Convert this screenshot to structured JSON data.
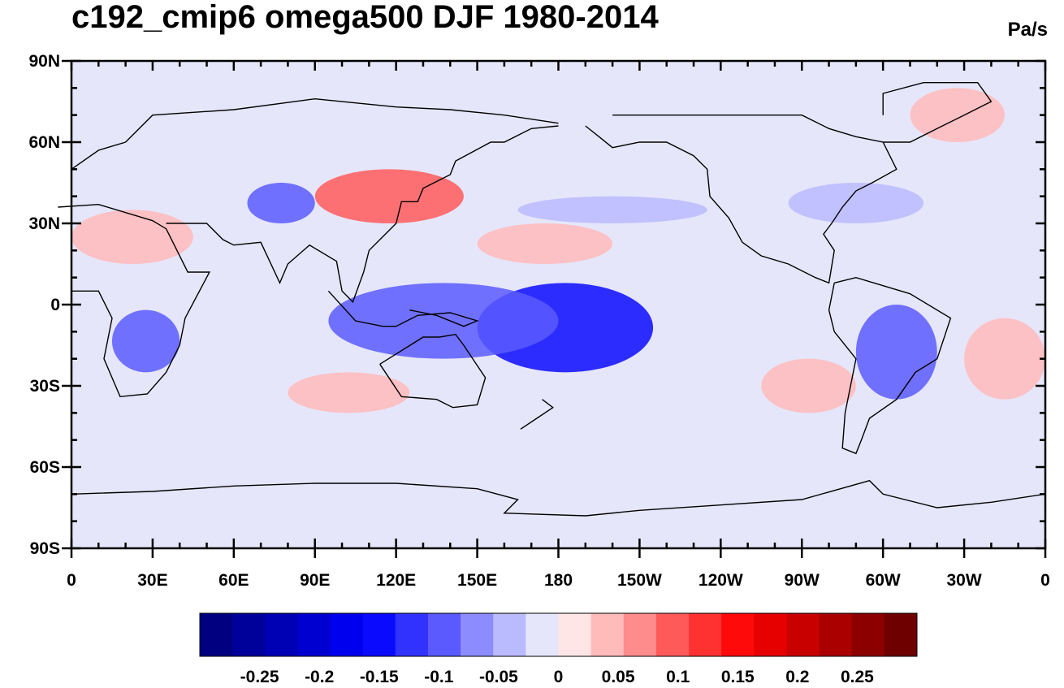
{
  "title": "c192_cmip6 omega500 DJF 1980-2014",
  "units": "Pa/s",
  "map": {
    "projection": "cylindrical-equidistant",
    "lon_range": [
      0,
      360
    ],
    "lat_range": [
      -90,
      90
    ],
    "lat_ticks": [
      {
        "value": 90,
        "label": "90N"
      },
      {
        "value": 60,
        "label": "60N"
      },
      {
        "value": 30,
        "label": "30N"
      },
      {
        "value": 0,
        "label": "0"
      },
      {
        "value": -30,
        "label": "30S"
      },
      {
        "value": -60,
        "label": "60S"
      },
      {
        "value": -90,
        "label": "90S"
      }
    ],
    "lon_ticks": [
      {
        "value": 0,
        "label": "0"
      },
      {
        "value": 30,
        "label": "30E"
      },
      {
        "value": 60,
        "label": "60E"
      },
      {
        "value": 90,
        "label": "90E"
      },
      {
        "value": 120,
        "label": "120E"
      },
      {
        "value": 150,
        "label": "150E"
      },
      {
        "value": 180,
        "label": "180"
      },
      {
        "value": 210,
        "label": "150W"
      },
      {
        "value": 240,
        "label": "120W"
      },
      {
        "value": 270,
        "label": "90W"
      },
      {
        "value": 300,
        "label": "60W"
      },
      {
        "value": 330,
        "label": "30W"
      },
      {
        "value": 360,
        "label": "0"
      }
    ],
    "minor_tick_step_deg": 10,
    "background_color": "#e6e6fa"
  },
  "colorbar": {
    "colors": [
      "#000080",
      "#00009a",
      "#0000b4",
      "#0000d0",
      "#0000ee",
      "#0a0aff",
      "#3232ff",
      "#5a5aff",
      "#8c8cff",
      "#babaff",
      "#e6e6fa",
      "#ffe6e6",
      "#ffbaba",
      "#ff8c8c",
      "#ff5a5a",
      "#ff3232",
      "#ff0a0a",
      "#e60000",
      "#c80000",
      "#aa0000",
      "#8c0000",
      "#6e0000"
    ],
    "tick_values": [
      -0.25,
      -0.2,
      -0.15,
      -0.1,
      -0.05,
      0,
      0.05,
      0.1,
      0.15,
      0.2,
      0.25
    ],
    "tick_labels": [
      "-0.25",
      "-0.2",
      "-0.15",
      "-0.1",
      "-0.05",
      "0",
      "0.05",
      "0.1",
      "0.15",
      "0.2",
      "0.25"
    ]
  },
  "anomaly_regions": [
    {
      "kind": "ascent",
      "level": -0.15,
      "lon": [
        150,
        215
      ],
      "lat": [
        -25,
        8
      ]
    },
    {
      "kind": "ascent",
      "level": -0.1,
      "lon": [
        95,
        180
      ],
      "lat": [
        -20,
        8
      ]
    },
    {
      "kind": "ascent",
      "level": -0.1,
      "lon": [
        15,
        40
      ],
      "lat": [
        -25,
        -2
      ]
    },
    {
      "kind": "ascent",
      "level": -0.1,
      "lon": [
        290,
        320
      ],
      "lat": [
        -35,
        0
      ]
    },
    {
      "kind": "ascent",
      "level": -0.05,
      "lon": [
        165,
        235
      ],
      "lat": [
        30,
        40
      ]
    },
    {
      "kind": "ascent",
      "level": -0.05,
      "lon": [
        265,
        315
      ],
      "lat": [
        30,
        45
      ]
    },
    {
      "kind": "ascent",
      "level": -0.1,
      "lon": [
        65,
        90
      ],
      "lat": [
        30,
        45
      ]
    },
    {
      "kind": "descent",
      "level": 0.05,
      "lon": [
        150,
        200
      ],
      "lat": [
        15,
        30
      ]
    },
    {
      "kind": "descent",
      "level": 0.05,
      "lon": [
        80,
        125
      ],
      "lat": [
        -40,
        -25
      ]
    },
    {
      "kind": "descent",
      "level": 0.05,
      "lon": [
        255,
        290
      ],
      "lat": [
        -40,
        -20
      ]
    },
    {
      "kind": "descent",
      "level": 0.1,
      "lon": [
        90,
        145
      ],
      "lat": [
        30,
        50
      ]
    },
    {
      "kind": "descent",
      "level": 0.05,
      "lon": [
        0,
        45
      ],
      "lat": [
        15,
        35
      ]
    },
    {
      "kind": "descent",
      "level": 0.05,
      "lon": [
        330,
        360
      ],
      "lat": [
        -35,
        -5
      ]
    },
    {
      "kind": "descent",
      "level": 0.05,
      "lon": [
        310,
        345
      ],
      "lat": [
        60,
        80
      ]
    }
  ]
}
